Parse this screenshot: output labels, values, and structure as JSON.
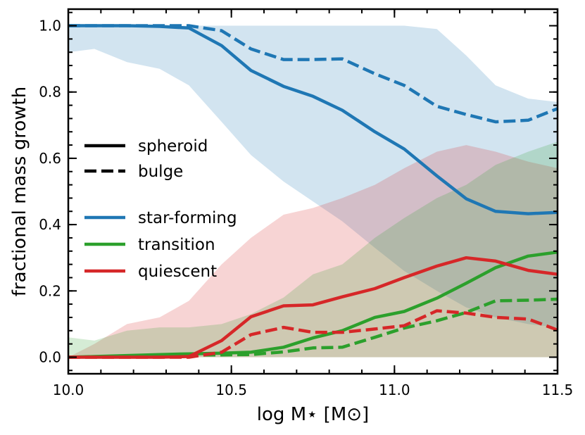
{
  "chart_data": {
    "type": "line",
    "xlabel": "log M⋆ [M⊙]",
    "ylabel": "fractional mass growth",
    "xlim": [
      10.0,
      11.5
    ],
    "ylim": [
      -0.05,
      1.05
    ],
    "xticks": [
      {
        "value": 10.0,
        "label": "10.0"
      },
      {
        "value": 10.5,
        "label": "10.5"
      },
      {
        "value": 11.0,
        "label": "11.0"
      },
      {
        "value": 11.5,
        "label": "11.5"
      }
    ],
    "yticks": [
      {
        "value": 0.0,
        "label": "0.0"
      },
      {
        "value": 0.2,
        "label": "0.2"
      },
      {
        "value": 0.4,
        "label": "0.4"
      },
      {
        "value": 0.6,
        "label": "0.6"
      },
      {
        "value": 0.8,
        "label": "0.8"
      },
      {
        "value": 1.0,
        "label": "1.0"
      }
    ],
    "x": [
      10.0,
      10.08,
      10.18,
      10.28,
      10.37,
      10.47,
      10.56,
      10.66,
      10.75,
      10.84,
      10.94,
      11.03,
      11.13,
      11.22,
      11.31,
      11.41,
      11.5
    ],
    "bands": [
      {
        "name": "star-forming-range",
        "color": "#1f77b4",
        "opacity": 0.2,
        "lower": [
          0.92,
          0.93,
          0.89,
          0.87,
          0.82,
          0.71,
          0.61,
          0.53,
          0.47,
          0.41,
          0.33,
          0.26,
          0.2,
          0.15,
          0.12,
          0.1,
          0.09
        ],
        "upper": [
          1.0,
          1.0,
          1.0,
          1.0,
          1.0,
          1.0,
          1.0,
          1.0,
          1.0,
          1.0,
          1.0,
          1.0,
          0.99,
          0.91,
          0.82,
          0.78,
          0.77
        ]
      },
      {
        "name": "quiescent-range",
        "color": "#d62728",
        "opacity": 0.2,
        "lower": [
          0,
          0,
          0,
          0,
          0,
          0,
          0,
          0,
          0,
          0,
          0,
          0,
          0,
          0,
          0,
          0,
          0
        ],
        "upper": [
          0.0,
          0.04,
          0.1,
          0.12,
          0.17,
          0.28,
          0.36,
          0.43,
          0.45,
          0.48,
          0.52,
          0.57,
          0.62,
          0.64,
          0.62,
          0.59,
          0.57
        ]
      },
      {
        "name": "transition-range",
        "color": "#2ca02c",
        "opacity": 0.2,
        "lower": [
          0,
          0,
          0,
          0,
          0,
          0,
          0,
          0,
          0,
          0,
          0,
          0,
          0,
          0,
          0,
          0,
          0
        ],
        "upper": [
          0.06,
          0.05,
          0.08,
          0.09,
          0.09,
          0.1,
          0.13,
          0.18,
          0.25,
          0.28,
          0.36,
          0.42,
          0.48,
          0.52,
          0.58,
          0.62,
          0.65
        ]
      }
    ],
    "series": [
      {
        "name": "star-forming spheroid",
        "color": "#1f77b4",
        "style": "solid",
        "values": [
          1.0,
          1.0,
          1.0,
          0.998,
          0.993,
          0.94,
          0.865,
          0.817,
          0.787,
          0.745,
          0.68,
          0.628,
          0.547,
          0.478,
          0.44,
          0.433,
          0.437
        ]
      },
      {
        "name": "star-forming bulge",
        "color": "#1f77b4",
        "style": "dashed",
        "values": [
          1.0,
          1.0,
          1.0,
          1.0,
          1.0,
          0.985,
          0.93,
          0.898,
          0.898,
          0.9,
          0.855,
          0.82,
          0.757,
          0.732,
          0.71,
          0.715,
          0.75
        ]
      },
      {
        "name": "transition spheroid",
        "color": "#2ca02c",
        "style": "solid",
        "values": [
          0.0,
          0.002,
          0.005,
          0.008,
          0.01,
          0.012,
          0.015,
          0.03,
          0.058,
          0.08,
          0.12,
          0.138,
          0.178,
          0.223,
          0.27,
          0.305,
          0.317
        ]
      },
      {
        "name": "transition bulge",
        "color": "#2ca02c",
        "style": "dashed",
        "values": [
          0.0,
          0.001,
          0.002,
          0.004,
          0.006,
          0.007,
          0.008,
          0.016,
          0.028,
          0.03,
          0.06,
          0.088,
          0.11,
          0.135,
          0.17,
          0.172,
          0.175
        ]
      },
      {
        "name": "quiescent spheroid",
        "color": "#d62728",
        "style": "solid",
        "values": [
          0.0,
          0.0,
          0.0,
          0.0,
          0.002,
          0.05,
          0.122,
          0.155,
          0.158,
          0.182,
          0.207,
          0.24,
          0.275,
          0.3,
          0.29,
          0.262,
          0.25
        ]
      },
      {
        "name": "quiescent bulge",
        "color": "#d62728",
        "style": "dashed",
        "values": [
          0.0,
          0.0,
          0.0,
          0.0,
          0.0,
          0.015,
          0.068,
          0.09,
          0.075,
          0.075,
          0.085,
          0.095,
          0.14,
          0.133,
          0.12,
          0.115,
          0.082
        ]
      }
    ],
    "legend": {
      "position": "center-left",
      "line_styles": [
        {
          "label": "spheroid",
          "style": "solid",
          "color": "#000000"
        },
        {
          "label": "bulge",
          "style": "dashed",
          "color": "#000000"
        }
      ],
      "populations": [
        {
          "label": "star-forming",
          "color": "#1f77b4"
        },
        {
          "label": "transition",
          "color": "#2ca02c"
        },
        {
          "label": "quiescent",
          "color": "#d62728"
        }
      ]
    }
  }
}
